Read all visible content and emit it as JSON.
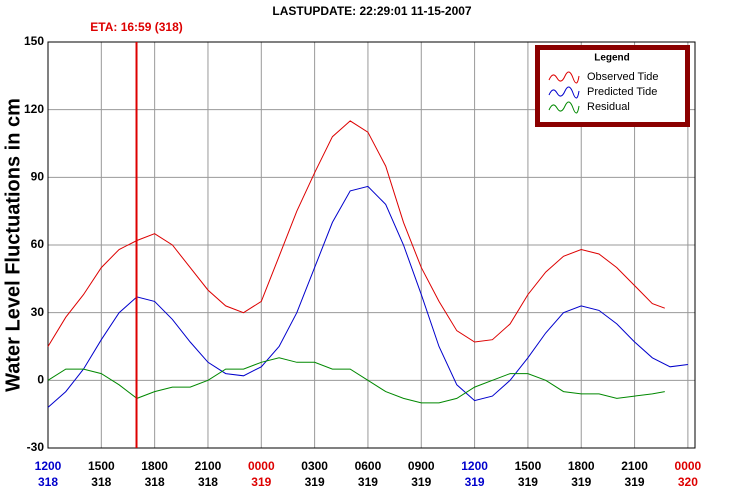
{
  "chart_data": {
    "type": "line",
    "title": "LASTUPDATE: 22:29:01  11-15-2007",
    "ylabel": "Water Level Fluctuations in cm",
    "legend_title": "Legend",
    "legend_position": "upper right",
    "grid": true,
    "ylim": [
      -30,
      150
    ],
    "yticks": [
      -30,
      0,
      30,
      60,
      90,
      120,
      150
    ],
    "xlim": [
      0,
      36.4
    ],
    "xticks": [
      {
        "value": 0,
        "label": "1200",
        "sublabel": "318",
        "color": "#0000cc"
      },
      {
        "value": 3,
        "label": "1500",
        "sublabel": "318",
        "color": "#000000"
      },
      {
        "value": 6,
        "label": "1800",
        "sublabel": "318",
        "color": "#000000"
      },
      {
        "value": 9,
        "label": "2100",
        "sublabel": "318",
        "color": "#000000"
      },
      {
        "value": 12,
        "label": "0000",
        "sublabel": "319",
        "color": "#dd0000"
      },
      {
        "value": 15,
        "label": "0300",
        "sublabel": "319",
        "color": "#000000"
      },
      {
        "value": 18,
        "label": "0600",
        "sublabel": "319",
        "color": "#000000"
      },
      {
        "value": 21,
        "label": "0900",
        "sublabel": "319",
        "color": "#000000"
      },
      {
        "value": 24,
        "label": "1200",
        "sublabel": "319",
        "color": "#0000cc"
      },
      {
        "value": 27,
        "label": "1500",
        "sublabel": "319",
        "color": "#000000"
      },
      {
        "value": 30,
        "label": "1800",
        "sublabel": "319",
        "color": "#000000"
      },
      {
        "value": 33,
        "label": "2100",
        "sublabel": "319",
        "color": "#000000"
      },
      {
        "value": 36,
        "label": "0000",
        "sublabel": "320",
        "color": "#dd0000"
      }
    ],
    "eta": {
      "label": "ETA: 16:59 (318)",
      "x": 4.98,
      "color": "#dd0000"
    },
    "series": [
      {
        "name": "Observed Tide",
        "color": "#dd0000",
        "x": [
          0,
          1,
          2,
          3,
          4,
          5,
          6,
          7,
          8,
          9,
          10,
          11,
          12,
          13,
          14,
          15,
          16,
          17,
          18,
          19,
          20,
          21,
          22,
          23,
          24,
          25,
          26,
          27,
          28,
          29,
          30,
          31,
          32,
          33,
          34,
          34.7
        ],
        "values": [
          15,
          28,
          38,
          50,
          58,
          62,
          65,
          60,
          50,
          40,
          33,
          30,
          35,
          55,
          75,
          92,
          108,
          115,
          110,
          95,
          70,
          50,
          35,
          22,
          17,
          18,
          25,
          38,
          48,
          55,
          58,
          56,
          50,
          42,
          34,
          32
        ]
      },
      {
        "name": "Predicted Tide",
        "color": "#0000cc",
        "x": [
          0,
          1,
          2,
          3,
          4,
          5,
          6,
          7,
          8,
          9,
          10,
          11,
          12,
          13,
          14,
          15,
          16,
          17,
          18,
          19,
          20,
          21,
          22,
          23,
          24,
          25,
          26,
          27,
          28,
          29,
          30,
          31,
          32,
          33,
          34,
          35,
          36
        ],
        "values": [
          -12,
          -5,
          5,
          18,
          30,
          37,
          35,
          27,
          17,
          8,
          3,
          2,
          6,
          15,
          30,
          50,
          70,
          84,
          86,
          78,
          60,
          38,
          15,
          -2,
          -9,
          -7,
          0,
          10,
          21,
          30,
          33,
          31,
          25,
          17,
          10,
          6,
          7
        ]
      },
      {
        "name": "Residual",
        "color": "#008800",
        "x": [
          0,
          1,
          2,
          3,
          4,
          5,
          6,
          7,
          8,
          9,
          10,
          11,
          12,
          13,
          14,
          15,
          16,
          17,
          18,
          19,
          20,
          21,
          22,
          23,
          24,
          25,
          26,
          27,
          28,
          29,
          30,
          31,
          32,
          33,
          34,
          34.7
        ],
        "values": [
          0,
          5,
          5,
          3,
          -2,
          -8,
          -5,
          -3,
          -3,
          0,
          5,
          5,
          8,
          10,
          8,
          8,
          5,
          5,
          0,
          -5,
          -8,
          -10,
          -10,
          -8,
          -3,
          0,
          3,
          3,
          0,
          -5,
          -6,
          -6,
          -8,
          -7,
          -6,
          -5
        ]
      }
    ]
  }
}
